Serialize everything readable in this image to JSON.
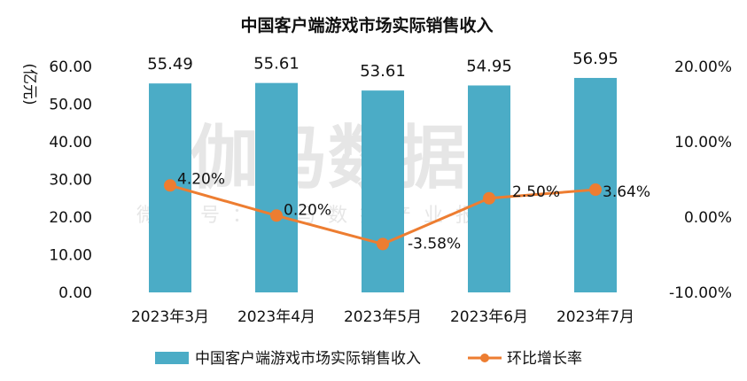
{
  "watermark": {
    "main": "伽马数据",
    "sub": "微信号：伽马数据产业报告"
  },
  "chart_data": {
    "type": "bar+line",
    "title": "中国客户端游戏市场实际销售收入",
    "ylabel": "(亿元)",
    "categories": [
      "2023年3月",
      "2023年4月",
      "2023年5月",
      "2023年6月",
      "2023年7月"
    ],
    "series": [
      {
        "name": "中国客户端游戏市场实际销售收入",
        "type": "bar",
        "axis": "left",
        "color": "#4bacc6",
        "values": [
          55.49,
          55.61,
          53.61,
          54.95,
          56.95
        ],
        "labels": [
          "55.49",
          "55.61",
          "53.61",
          "54.95",
          "56.95"
        ]
      },
      {
        "name": "环比增长率",
        "type": "line",
        "axis": "right",
        "color": "#ed7d31",
        "values": [
          4.2,
          0.2,
          -3.58,
          2.5,
          3.64
        ],
        "labels": [
          "4.20%",
          "0.20%",
          "-3.58%",
          "2.50%",
          "3.64%"
        ]
      }
    ],
    "y_left": {
      "min": 0,
      "max": 60,
      "step": 10,
      "tick_labels": [
        "0.00",
        "10.00",
        "20.00",
        "30.00",
        "40.00",
        "50.00",
        "60.00"
      ]
    },
    "y_right": {
      "min": -10,
      "max": 20,
      "step": 10,
      "tick_labels": [
        "-10.00%",
        "0.00%",
        "10.00%",
        "20.00%"
      ]
    },
    "grid": false,
    "legend_position": "bottom"
  }
}
